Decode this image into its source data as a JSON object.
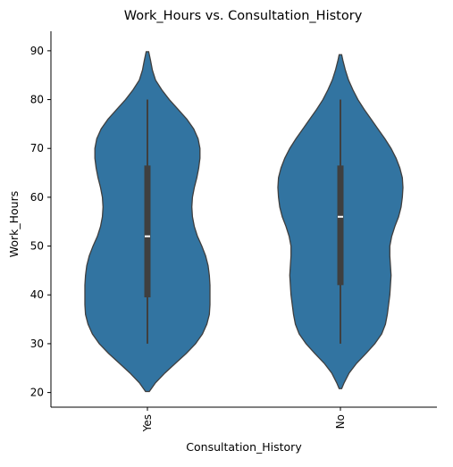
{
  "chart_data": {
    "type": "violin",
    "title": "Work_Hours vs. Consultation_History",
    "xlabel": "Consultation_History",
    "ylabel": "Work_Hours",
    "categories": [
      "Yes",
      "No"
    ],
    "ylim": [
      17,
      94
    ],
    "yticks": [
      20,
      30,
      40,
      50,
      60,
      70,
      80,
      90
    ],
    "grid": false,
    "legend": "none",
    "fill_color": "#3274a1",
    "edge_color": "#3f3f3f",
    "box_color": "#3f3f3f",
    "median_color": "#ffffff",
    "violins": [
      {
        "category": "Yes",
        "min": 30,
        "q1": 39.5,
        "median": 52,
        "q3": 66.5,
        "max": 80,
        "profile": [
          {
            "y": 20.2,
            "w": 0.03
          },
          {
            "y": 22,
            "w": 0.13
          },
          {
            "y": 24,
            "w": 0.28
          },
          {
            "y": 26,
            "w": 0.45
          },
          {
            "y": 28,
            "w": 0.62
          },
          {
            "y": 30,
            "w": 0.77
          },
          {
            "y": 32,
            "w": 0.88
          },
          {
            "y": 34,
            "w": 0.95
          },
          {
            "y": 36,
            "w": 0.99
          },
          {
            "y": 38,
            "w": 1.0
          },
          {
            "y": 40,
            "w": 1.0
          },
          {
            "y": 42,
            "w": 1.0
          },
          {
            "y": 44,
            "w": 0.99
          },
          {
            "y": 46,
            "w": 0.97
          },
          {
            "y": 48,
            "w": 0.93
          },
          {
            "y": 50,
            "w": 0.87
          },
          {
            "y": 52,
            "w": 0.8
          },
          {
            "y": 54,
            "w": 0.75
          },
          {
            "y": 56,
            "w": 0.72
          },
          {
            "y": 58,
            "w": 0.71
          },
          {
            "y": 60,
            "w": 0.72
          },
          {
            "y": 62,
            "w": 0.75
          },
          {
            "y": 64,
            "w": 0.79
          },
          {
            "y": 66,
            "w": 0.82
          },
          {
            "y": 68,
            "w": 0.84
          },
          {
            "y": 70,
            "w": 0.84
          },
          {
            "y": 72,
            "w": 0.81
          },
          {
            "y": 74,
            "w": 0.74
          },
          {
            "y": 76,
            "w": 0.63
          },
          {
            "y": 78,
            "w": 0.49
          },
          {
            "y": 80,
            "w": 0.35
          },
          {
            "y": 82,
            "w": 0.23
          },
          {
            "y": 84,
            "w": 0.13
          },
          {
            "y": 86,
            "w": 0.08
          },
          {
            "y": 88,
            "w": 0.05
          },
          {
            "y": 89.8,
            "w": 0.02
          }
        ]
      },
      {
        "category": "No",
        "min": 30,
        "q1": 42,
        "median": 56,
        "q3": 66.5,
        "max": 80,
        "profile": [
          {
            "y": 20.8,
            "w": 0.02
          },
          {
            "y": 22,
            "w": 0.06
          },
          {
            "y": 24,
            "w": 0.14
          },
          {
            "y": 26,
            "w": 0.26
          },
          {
            "y": 28,
            "w": 0.41
          },
          {
            "y": 30,
            "w": 0.55
          },
          {
            "y": 32,
            "w": 0.66
          },
          {
            "y": 34,
            "w": 0.72
          },
          {
            "y": 36,
            "w": 0.75
          },
          {
            "y": 38,
            "w": 0.77
          },
          {
            "y": 40,
            "w": 0.79
          },
          {
            "y": 42,
            "w": 0.8
          },
          {
            "y": 44,
            "w": 0.81
          },
          {
            "y": 46,
            "w": 0.8
          },
          {
            "y": 48,
            "w": 0.79
          },
          {
            "y": 50,
            "w": 0.79
          },
          {
            "y": 52,
            "w": 0.82
          },
          {
            "y": 54,
            "w": 0.87
          },
          {
            "y": 56,
            "w": 0.93
          },
          {
            "y": 58,
            "w": 0.97
          },
          {
            "y": 60,
            "w": 0.99
          },
          {
            "y": 62,
            "w": 1.0
          },
          {
            "y": 64,
            "w": 0.99
          },
          {
            "y": 66,
            "w": 0.95
          },
          {
            "y": 68,
            "w": 0.89
          },
          {
            "y": 70,
            "w": 0.81
          },
          {
            "y": 72,
            "w": 0.71
          },
          {
            "y": 74,
            "w": 0.6
          },
          {
            "y": 76,
            "w": 0.49
          },
          {
            "y": 78,
            "w": 0.38
          },
          {
            "y": 80,
            "w": 0.28
          },
          {
            "y": 82,
            "w": 0.2
          },
          {
            "y": 84,
            "w": 0.13
          },
          {
            "y": 86,
            "w": 0.08
          },
          {
            "y": 88,
            "w": 0.04
          },
          {
            "y": 89.2,
            "w": 0.02
          }
        ]
      }
    ]
  }
}
